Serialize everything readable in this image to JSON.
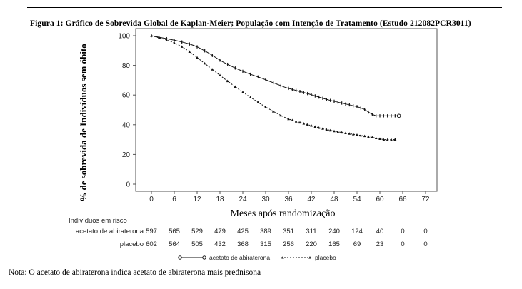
{
  "figure_title": "Figura 1: Gráfico de Sobrevida Global de Kaplan-Meier; População com Intenção de Tratamento (Estudo 212082PCR3011)",
  "note": "Nota: O acetato de abiraterona indica acetato de abiraterona mais prednisona",
  "chart_data": {
    "type": "line",
    "title": "",
    "xlabel": "Meses após randomização",
    "ylabel": "% de sobrevida de Indivíduos sem óbito",
    "xlim": [
      0,
      72
    ],
    "ylim": [
      0,
      100
    ],
    "x_ticks": [
      "0",
      "6",
      "12",
      "18",
      "24",
      "30",
      "36",
      "42",
      "48",
      "54",
      "60",
      "66",
      "72"
    ],
    "y_ticks": [
      "0",
      "20",
      "40",
      "60",
      "80",
      "100"
    ],
    "grid": false,
    "legend_position": "bottom",
    "series": [
      {
        "name": "acetato de abiraterona",
        "style": "solid",
        "x": [
          0,
          1,
          2,
          3,
          4,
          5,
          6,
          7,
          8,
          9,
          10,
          11,
          12,
          13,
          14,
          15,
          16,
          17,
          18,
          19,
          20,
          21,
          22,
          23,
          24,
          25,
          26,
          27,
          28,
          29,
          30,
          31,
          32,
          33,
          34,
          35,
          36,
          37,
          38,
          39,
          40,
          41,
          42,
          43,
          44,
          45,
          46,
          47,
          48,
          49,
          50,
          51,
          52,
          53,
          54,
          55,
          56,
          57,
          58,
          59,
          60,
          61,
          62,
          63,
          64,
          65
        ],
        "y": [
          100,
          99.5,
          99,
          98.5,
          98,
          97.5,
          97,
          96.4,
          95.8,
          95.1,
          94.4,
          93.5,
          92.5,
          91.2,
          89.8,
          88.3,
          86.7,
          85.1,
          83.5,
          82,
          80.7,
          79.4,
          78.2,
          77.1,
          76,
          75,
          74,
          73.1,
          72.2,
          71.3,
          70.3,
          69.3,
          68.3,
          67.3,
          66.3,
          65.3,
          64.5,
          63.8,
          63.1,
          62.4,
          61.7,
          61,
          60.2,
          59.4,
          58.6,
          57.8,
          57.1,
          56.4,
          55.8,
          55.2,
          54.6,
          54,
          53.4,
          52.8,
          52.2,
          51.3,
          50.3,
          48.5,
          47,
          46,
          46,
          46,
          46,
          46,
          46,
          46
        ]
      },
      {
        "name": "placebo",
        "style": "dashed",
        "x": [
          0,
          1,
          2,
          3,
          4,
          5,
          6,
          7,
          8,
          9,
          10,
          11,
          12,
          13,
          14,
          15,
          16,
          17,
          18,
          19,
          20,
          21,
          22,
          23,
          24,
          25,
          26,
          27,
          28,
          29,
          30,
          31,
          32,
          33,
          34,
          35,
          36,
          37,
          38,
          39,
          40,
          41,
          42,
          43,
          44,
          45,
          46,
          47,
          48,
          49,
          50,
          51,
          52,
          53,
          54,
          55,
          56,
          57,
          58,
          59,
          60,
          61,
          62,
          63,
          64
        ],
        "y": [
          100,
          99.3,
          98.6,
          97.9,
          97.1,
          96.2,
          95.2,
          94,
          92.6,
          91,
          89.2,
          87.3,
          85.3,
          83.3,
          81.3,
          79.3,
          77.3,
          75.3,
          73.3,
          71.3,
          69.4,
          67.5,
          65.6,
          63.8,
          62,
          60.2,
          58.5,
          56.8,
          55.1,
          53.5,
          52,
          50.5,
          49,
          47.6,
          46.3,
          45,
          43.9,
          43,
          42.2,
          41.5,
          40.8,
          40.1,
          39.4,
          38.7,
          38,
          37.4,
          36.8,
          36.2,
          35.7,
          35.2,
          34.8,
          34.4,
          34,
          33.6,
          33.2,
          32.8,
          32.4,
          32,
          31.5,
          31,
          30.5,
          30,
          30,
          30,
          30
        ]
      }
    ],
    "risk_table": {
      "header": "Indivíduos em risco",
      "rows": [
        {
          "label": "acetato de abiraterona",
          "values": [
            "597",
            "565",
            "529",
            "479",
            "425",
            "389",
            "351",
            "311",
            "240",
            "124",
            "40",
            "0",
            "0"
          ]
        },
        {
          "label": "placebo",
          "values": [
            "602",
            "564",
            "505",
            "432",
            "368",
            "315",
            "256",
            "220",
            "165",
            "69",
            "23",
            "0",
            "0"
          ]
        }
      ]
    }
  }
}
